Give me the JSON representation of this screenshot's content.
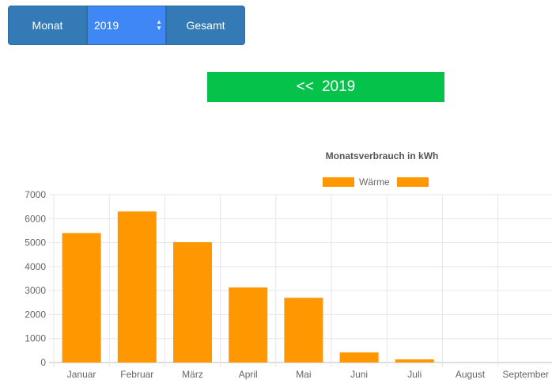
{
  "toolbar": {
    "month_label": "Monat",
    "year_value": "2019",
    "total_label": "Gesamt"
  },
  "banner": {
    "prev_label": "<<",
    "year": "2019"
  },
  "colors": {
    "bar": "#ff9800",
    "button": "#337ab7",
    "select": "#3f87f5",
    "banner": "#05c24b"
  },
  "chart_data": {
    "type": "bar",
    "title": "Monatsverbrauch in kWh",
    "categories": [
      "Januar",
      "Februar",
      "März",
      "April",
      "Mai",
      "Juni",
      "Juli",
      "August",
      "September"
    ],
    "series": [
      {
        "name": "Wärme",
        "values": [
          5400,
          6300,
          5020,
          3130,
          2700,
          420,
          130,
          0,
          0
        ]
      },
      {
        "name": "",
        "values": [
          0,
          0,
          0,
          0,
          0,
          0,
          0,
          0,
          0
        ]
      }
    ],
    "ylim": [
      0,
      7000
    ],
    "yticks": [
      0,
      1000,
      2000,
      3000,
      4000,
      5000,
      6000,
      7000
    ],
    "grid": true,
    "legend": "top"
  }
}
